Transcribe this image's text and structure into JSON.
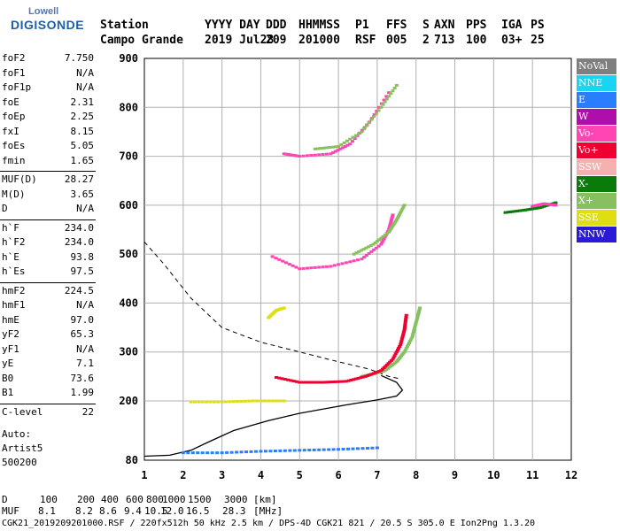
{
  "logo": {
    "top": "Lowell",
    "bottom": "DIGISONDE"
  },
  "header": {
    "row1": [
      "Station",
      "YYYY DAY",
      "DDD",
      "HHMMSS",
      "P1",
      "FFS",
      "S",
      "AXN",
      "PPS",
      "IGA",
      "PS"
    ],
    "row2": [
      "Campo Grande",
      "2019 Jul28",
      "209",
      "201000",
      "RSF",
      "005",
      "2",
      "713",
      "100",
      "03+",
      "25"
    ]
  },
  "params": [
    {
      "name": "foF2",
      "value": "7.750"
    },
    {
      "name": "foF1",
      "value": "N/A"
    },
    {
      "name": "foF1p",
      "value": "N/A"
    },
    {
      "name": "foE",
      "value": "2.31"
    },
    {
      "name": "foEp",
      "value": "2.25"
    },
    {
      "name": "fxI",
      "value": "8.15"
    },
    {
      "name": "foEs",
      "value": "5.05"
    },
    {
      "name": "fmin",
      "value": "1.65"
    },
    {
      "name": "MUF(D)",
      "value": "28.27"
    },
    {
      "name": "M(D)",
      "value": "3.65"
    },
    {
      "name": "D",
      "value": "N/A"
    },
    {
      "name": "h`F",
      "value": "234.0"
    },
    {
      "name": "h`F2",
      "value": "234.0"
    },
    {
      "name": "h`E",
      "value": "93.8"
    },
    {
      "name": "h`Es",
      "value": "97.5"
    },
    {
      "name": "hmF2",
      "value": "224.5"
    },
    {
      "name": "hmF1",
      "value": "N/A"
    },
    {
      "name": "hmE",
      "value": "97.0"
    },
    {
      "name": "yF2",
      "value": "65.3"
    },
    {
      "name": "yF1",
      "value": "N/A"
    },
    {
      "name": "yE",
      "value": "7.1"
    },
    {
      "name": "B0",
      "value": "73.6"
    },
    {
      "name": "B1",
      "value": "1.99"
    },
    {
      "name": "C-level",
      "value": "22"
    }
  ],
  "auto": [
    "Auto:",
    "Artist5",
    "500200"
  ],
  "footer": {
    "d_label": "D",
    "d_values": [
      "100",
      "200",
      "400",
      "600",
      "800",
      "1000",
      "1500",
      "3000"
    ],
    "d_unit": "[km]",
    "muf_label": "MUF",
    "muf_values": [
      "8.1",
      "8.2",
      "8.6",
      "9.4",
      "10.5",
      "12.0",
      "16.5",
      "28.3"
    ],
    "muf_unit": "[MHz]",
    "info": "CGK21_2019209201000.RSF / 220fx512h 50 kHz 2.5 km / DPS-4D CGK21 821 / 20.5 S 305.0 E Ion2Png 1.3.20"
  },
  "legend": [
    {
      "label": "NoVal",
      "color": "#7f7f7f"
    },
    {
      "label": "NNE",
      "color": "#19d4f2"
    },
    {
      "label": "E",
      "color": "#2a7dff"
    },
    {
      "label": "W",
      "color": "#b00eaa"
    },
    {
      "label": "Vo-",
      "color": "#ff44b4"
    },
    {
      "label": "Vo+",
      "color": "#ee0030"
    },
    {
      "label": "SSW",
      "color": "#f5b0b0"
    },
    {
      "label": "X-",
      "color": "#0a7a0a"
    },
    {
      "label": "X+",
      "color": "#88c060"
    },
    {
      "label": "SSE",
      "color": "#dede10"
    },
    {
      "label": "NNW",
      "color": "#2a1ad8"
    }
  ],
  "chart_data": {
    "type": "scatter",
    "xlim": [
      1,
      12
    ],
    "ylim": [
      80,
      900
    ],
    "x_ticks": [
      "1",
      "2",
      "3",
      "4",
      "5",
      "6",
      "7",
      "8",
      "9",
      "10",
      "11",
      "12"
    ],
    "y_ticks": [
      "80",
      "200",
      "300",
      "400",
      "500",
      "600",
      "700",
      "800",
      "900"
    ],
    "grid": true,
    "profile_solid": [
      [
        1,
        88
      ],
      [
        1.65,
        90
      ],
      [
        2.2,
        100
      ],
      [
        2.6,
        115
      ],
      [
        3.3,
        140
      ],
      [
        4.2,
        160
      ],
      [
        5,
        175
      ],
      [
        6.2,
        192
      ],
      [
        7,
        202
      ],
      [
        7.5,
        210
      ],
      [
        7.65,
        222
      ],
      [
        7.5,
        238
      ],
      [
        7.1,
        252
      ]
    ],
    "profile_dashed": [
      [
        1,
        525
      ],
      [
        1.5,
        480
      ],
      [
        2.2,
        410
      ],
      [
        3,
        350
      ],
      [
        4,
        320
      ],
      [
        5,
        300
      ],
      [
        6,
        280
      ],
      [
        6.8,
        265
      ],
      [
        7.3,
        250
      ],
      [
        7.6,
        245
      ]
    ],
    "traces": [
      {
        "legend": "X+",
        "points": [
          [
            6.6,
            250
          ],
          [
            6.9,
            255
          ],
          [
            7.2,
            262
          ],
          [
            7.5,
            280
          ],
          [
            7.7,
            300
          ],
          [
            7.9,
            330
          ],
          [
            8.0,
            360
          ],
          [
            8.1,
            390
          ]
        ]
      },
      {
        "legend": "Vo+",
        "points": [
          [
            4.4,
            248
          ],
          [
            5.0,
            238
          ],
          [
            5.6,
            238
          ],
          [
            6.2,
            240
          ],
          [
            6.7,
            250
          ],
          [
            7.1,
            262
          ],
          [
            7.4,
            285
          ],
          [
            7.6,
            315
          ],
          [
            7.7,
            345
          ],
          [
            7.75,
            375
          ]
        ]
      },
      {
        "legend": "Vo-",
        "points": [
          [
            4.3,
            495
          ],
          [
            5.0,
            470
          ],
          [
            5.8,
            475
          ],
          [
            6.6,
            490
          ],
          [
            7.1,
            520
          ],
          [
            7.3,
            550
          ],
          [
            7.4,
            580
          ]
        ]
      },
      {
        "legend": "X+",
        "points": [
          [
            6.4,
            500
          ],
          [
            6.9,
            520
          ],
          [
            7.3,
            545
          ],
          [
            7.5,
            570
          ],
          [
            7.7,
            600
          ]
        ]
      },
      {
        "legend": "Vo-",
        "points": [
          [
            4.6,
            705
          ],
          [
            5.0,
            700
          ],
          [
            5.8,
            705
          ],
          [
            6.3,
            725
          ],
          [
            6.8,
            770
          ],
          [
            7.3,
            830
          ]
        ]
      },
      {
        "legend": "X+",
        "points": [
          [
            5.4,
            715
          ],
          [
            6.0,
            720
          ],
          [
            6.6,
            750
          ],
          [
            7.1,
            800
          ],
          [
            7.5,
            845
          ]
        ]
      },
      {
        "legend": "X-",
        "points": [
          [
            10.3,
            585
          ],
          [
            10.8,
            590
          ],
          [
            11.2,
            595
          ],
          [
            11.6,
            605
          ]
        ]
      },
      {
        "legend": "Vo-",
        "points": [
          [
            11.0,
            598
          ],
          [
            11.3,
            603
          ],
          [
            11.6,
            600
          ]
        ]
      },
      {
        "legend": "SSE",
        "points": [
          [
            2.2,
            198
          ],
          [
            3.0,
            198
          ],
          [
            3.8,
            200
          ],
          [
            4.6,
            200
          ]
        ]
      },
      {
        "legend": "E",
        "points": [
          [
            2.0,
            95
          ],
          [
            3.0,
            95
          ],
          [
            4.0,
            98
          ],
          [
            5.0,
            100
          ],
          [
            6.0,
            102
          ],
          [
            7.0,
            105
          ]
        ]
      },
      {
        "legend": "SSE",
        "points": [
          [
            4.2,
            370
          ],
          [
            4.4,
            385
          ],
          [
            4.6,
            390
          ]
        ]
      }
    ]
  }
}
